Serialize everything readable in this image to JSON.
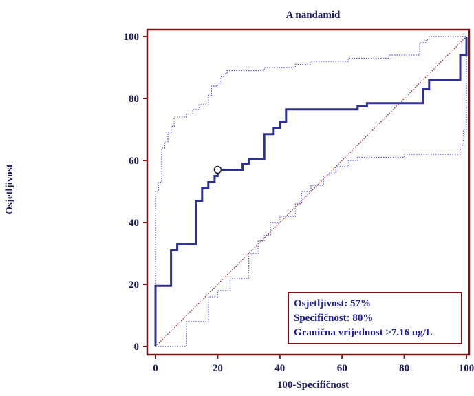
{
  "chart_data": {
    "type": "line",
    "title": "A nandamid",
    "xlabel": "100-Specifičnost",
    "ylabel": "Osjetljivost",
    "xlim": [
      0,
      100
    ],
    "ylim": [
      0,
      100
    ],
    "xticks": [
      "0",
      "20",
      "40",
      "60",
      "80",
      "100"
    ],
    "yticks": [
      "0",
      "20",
      "40",
      "60",
      "80",
      "100"
    ],
    "grid": false,
    "colors": {
      "frame": "#7a1414",
      "roc": "#2e3192",
      "ci": "#4a4ad0",
      "diagonal": "#8b1a1a",
      "text": "#1a1a5a"
    },
    "series": [
      {
        "style": "solid-thick",
        "x": [
          0,
          0,
          5,
          5,
          7,
          7,
          13,
          13,
          15,
          15,
          17,
          17,
          19,
          19,
          20,
          20,
          28,
          28,
          30,
          30,
          35,
          35,
          38,
          38,
          40,
          40,
          42,
          42,
          65,
          65,
          68,
          68,
          86,
          86,
          88,
          88,
          98,
          98,
          100,
          100
        ],
        "y": [
          0,
          19.5,
          19.5,
          31,
          31,
          33,
          33,
          47,
          47,
          51,
          51,
          53,
          53,
          55,
          55,
          57,
          57,
          59,
          59,
          60.5,
          60.5,
          68.5,
          68.5,
          70.5,
          70.5,
          72.5,
          72.5,
          76.5,
          76.5,
          77.5,
          77.5,
          78.5,
          78.5,
          83,
          83,
          86,
          86,
          94,
          94,
          100
        ]
      },
      {
        "style": "dotted-upper-ci",
        "x": [
          0,
          0,
          1,
          1,
          2,
          2,
          3,
          3,
          4,
          4,
          5,
          5,
          6,
          6,
          7,
          7,
          10,
          10,
          12,
          12,
          14,
          14,
          17,
          17,
          18,
          18,
          20,
          20,
          21,
          21,
          22,
          22,
          23,
          23,
          25,
          25,
          35,
          35,
          45,
          45,
          50,
          50,
          62,
          62,
          75,
          75,
          85,
          85,
          87,
          87,
          88,
          88,
          100
        ],
        "y": [
          0,
          50,
          50,
          53,
          53,
          64,
          64,
          66,
          66,
          69,
          69,
          71,
          71,
          74,
          74,
          74,
          74,
          75,
          75,
          76.5,
          76.5,
          78,
          78,
          81,
          81,
          84,
          84,
          85,
          85,
          87,
          87,
          88,
          88,
          89,
          89,
          89,
          89,
          90,
          90,
          91,
          91,
          92,
          92,
          93,
          93,
          94,
          94,
          98,
          98,
          99,
          99,
          100,
          100
        ]
      },
      {
        "style": "dotted-lower-ci",
        "x": [
          0,
          10,
          10,
          17,
          17,
          20,
          20,
          24,
          24,
          30,
          30,
          33,
          33,
          35,
          35,
          37,
          37,
          40,
          40,
          45,
          45,
          47,
          47,
          50,
          50,
          54,
          54,
          56,
          56,
          58,
          58,
          62,
          62,
          65,
          65,
          80,
          80,
          98,
          98,
          99,
          99,
          100,
          100
        ],
        "y": [
          0,
          0,
          8,
          8,
          16,
          16,
          18,
          18,
          22,
          22,
          30,
          30,
          34,
          34,
          36,
          36,
          40,
          40,
          42,
          42,
          46,
          46,
          50,
          50,
          52,
          52,
          55,
          55,
          56,
          56,
          58,
          58,
          60,
          60,
          61,
          61,
          62,
          62,
          65,
          65,
          70,
          70,
          100
        ]
      },
      {
        "style": "dotted-diagonal",
        "x": [
          0,
          100
        ],
        "y": [
          0,
          100
        ]
      }
    ],
    "marker": {
      "x": 20,
      "y": 57
    },
    "legend": {
      "position": "bottom-right",
      "lines": [
        "Osjetljivost: 57%",
        "Specifičnost: 80%",
        "Granična vrijednost >7.16 ug/L"
      ]
    }
  }
}
